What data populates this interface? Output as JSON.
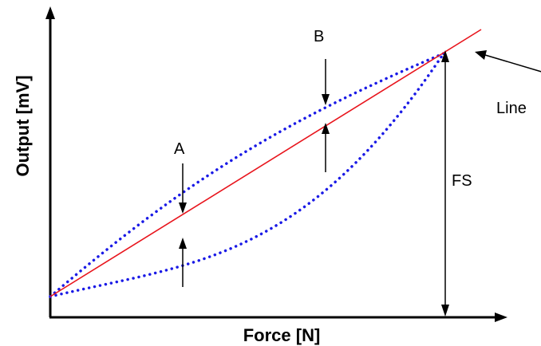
{
  "axes": {
    "x_label": "Force [N]",
    "y_label": "Output [mV]"
  },
  "annotations": {
    "a_label": "A",
    "b_label": "B",
    "fs_label": "FS",
    "line_label": "Line"
  },
  "colors": {
    "axis": "#000000",
    "linear_fit": "#e8141c",
    "hysteresis_curve": "#1a1ae6",
    "background": "#ffffff"
  }
}
